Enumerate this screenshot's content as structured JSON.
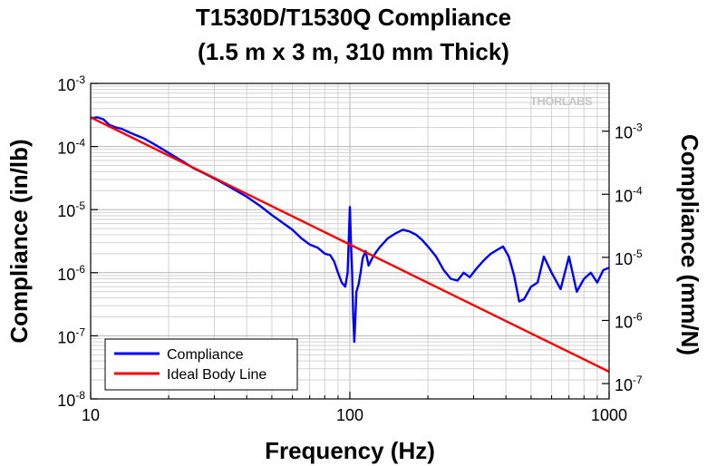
{
  "chart_data": {
    "type": "line",
    "title": "T1530D/T1530Q Compliance",
    "subtitle": "(1.5 m x 3 m, 310 mm Thick)",
    "xlabel": "Frequency (Hz)",
    "ylabel": "Compliance (in/lb)",
    "ylabel_right": "Compliance (mm/N)",
    "x_scale": "log",
    "y_scale": "log",
    "xlim": [
      10,
      1000
    ],
    "ylim": [
      1e-08,
      0.001
    ],
    "ylim_right": [
      5.71e-08,
      0.00571
    ],
    "x_ticks": [
      {
        "value": 10,
        "label": "10"
      },
      {
        "value": 100,
        "label": "100"
      },
      {
        "value": 1000,
        "label": "1000"
      }
    ],
    "y_ticks": [
      {
        "value": 1e-08,
        "base": "10",
        "exp": "-8"
      },
      {
        "value": 1e-07,
        "base": "10",
        "exp": "-7"
      },
      {
        "value": 1e-06,
        "base": "10",
        "exp": "-6"
      },
      {
        "value": 1e-05,
        "base": "10",
        "exp": "-5"
      },
      {
        "value": 0.0001,
        "base": "10",
        "exp": "-4"
      },
      {
        "value": 0.001,
        "base": "10",
        "exp": "-3"
      }
    ],
    "y_ticks_right": [
      {
        "value": 1e-07,
        "base": "10",
        "exp": "-7"
      },
      {
        "value": 1e-06,
        "base": "10",
        "exp": "-6"
      },
      {
        "value": 1e-05,
        "base": "10",
        "exp": "-5"
      },
      {
        "value": 0.0001,
        "base": "10",
        "exp": "-4"
      },
      {
        "value": 0.001,
        "base": "10",
        "exp": "-3"
      }
    ],
    "grid": true,
    "legend_position": "bottom-left",
    "watermark": "THORLABS",
    "series": [
      {
        "name": "Compliance",
        "color": "#0000ff",
        "x": [
          10,
          10.6,
          11.2,
          11.8,
          12.5,
          13.2,
          14,
          15,
          16,
          17.5,
          19,
          21,
          23,
          25,
          28,
          31,
          35,
          40,
          45,
          50,
          55,
          60,
          65,
          70,
          75,
          80,
          84,
          87,
          90,
          93,
          96,
          98,
          100,
          101,
          102,
          103,
          104,
          105,
          106,
          108,
          110,
          112,
          115,
          118,
          122,
          126,
          130,
          140,
          150,
          160,
          170,
          180,
          190,
          200,
          215,
          230,
          245,
          260,
          275,
          290,
          310,
          330,
          350,
          370,
          390,
          410,
          430,
          450,
          470,
          500,
          530,
          560,
          600,
          650,
          700,
          750,
          800,
          850,
          900,
          950,
          1000
        ],
        "y": [
          0.00028,
          0.00029,
          0.00027,
          0.00022,
          0.0002,
          0.00019,
          0.00017,
          0.00015,
          0.000135,
          0.00011,
          9e-05,
          7e-05,
          5.6e-05,
          4.5e-05,
          3.6e-05,
          2.9e-05,
          2.2e-05,
          1.6e-05,
          1.15e-05,
          8.2e-06,
          6.2e-06,
          4.8e-06,
          3.5e-06,
          2.8e-06,
          2.5e-06,
          2e-06,
          1.9e-06,
          1.5e-06,
          1e-06,
          7e-07,
          6e-07,
          1e-06,
          1.1e-05,
          3e-06,
          1e-06,
          2e-07,
          8e-08,
          2e-07,
          5e-07,
          6.5e-07,
          1e-06,
          1.7e-06,
          2.2e-06,
          1.3e-06,
          1.7e-06,
          2.1e-06,
          2.5e-06,
          3.5e-06,
          4.2e-06,
          4.8e-06,
          4.5e-06,
          4e-06,
          3.3e-06,
          2.6e-06,
          1.8e-06,
          1.1e-06,
          8e-07,
          7.5e-07,
          1e-06,
          8.5e-07,
          1.2e-06,
          1.6e-06,
          2e-06,
          2.3e-06,
          2.6e-06,
          1.8e-06,
          9e-07,
          3.5e-07,
          3.8e-07,
          6e-07,
          7e-07,
          1.8e-06,
          1e-06,
          5.5e-07,
          1.8e-06,
          5e-07,
          8e-07,
          1e-06,
          7e-07,
          1.1e-06,
          1.2e-06
        ]
      },
      {
        "name": "Ideal Body Line",
        "color": "#ff0000",
        "x": [
          10,
          1000
        ],
        "y": [
          0.00029,
          2.7e-08
        ]
      }
    ]
  }
}
